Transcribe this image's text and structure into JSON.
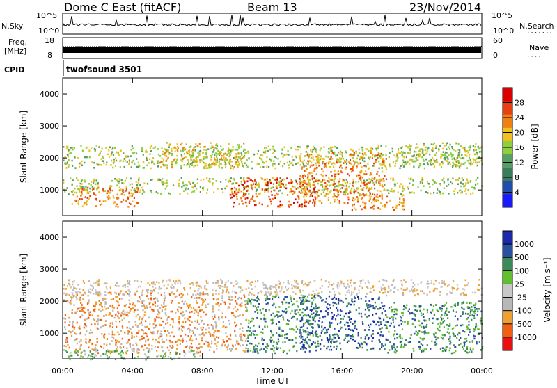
{
  "header": {
    "radar": "Dome C East (fitACF)",
    "beam": "Beam 13",
    "date": "23/Nov/2014"
  },
  "strip": {
    "nsky_label": "N.Sky",
    "nsky_ticks": [
      "10^5",
      "10^0"
    ],
    "nsearch_label": "N.Search",
    "nsearch_ticks": [
      "10^5",
      "10^0"
    ],
    "freq_label_1": "Freq.",
    "freq_label_2": "[MHz]",
    "freq_ticks": [
      "18",
      "8"
    ],
    "nave_label": "Nave",
    "nave_ticks": [
      "60",
      "0"
    ],
    "cpid_label": "CPID",
    "cpid_text": "twofsound 3501"
  },
  "colors": {
    "power": [
      "#1a1aff",
      "#1f4faa",
      "#3a7d5e",
      "#55a060",
      "#8fcf3f",
      "#f0c020",
      "#f08010",
      "#e84010",
      "#dc0000"
    ],
    "velocity": [
      "#e81010",
      "#f06010",
      "#f0a030",
      "#b8b8b8",
      "#c8c8c8",
      "#60c030",
      "#3a8a5a",
      "#2a50a0",
      "#1a2aaa"
    ]
  },
  "chart_data": [
    {
      "type": "heatmap",
      "name": "power",
      "xlabel": "",
      "ylabel": "Slant Range [km]",
      "ylim": [
        200,
        4500
      ],
      "xlim": [
        0,
        24
      ],
      "yticks": [
        "1000",
        "2000",
        "3000",
        "4000"
      ],
      "colorbar_label": "Power [dB]",
      "colorbar_ticks": [
        "4",
        "8",
        "12",
        "16",
        "20",
        "24",
        "28"
      ],
      "bands": [
        {
          "x0": 0.0,
          "x1": 24.0,
          "y0": 900,
          "y1": 1400,
          "level": 4
        },
        {
          "x0": 0.0,
          "x1": 24.0,
          "y0": 1700,
          "y1": 2400,
          "level": 4
        },
        {
          "x0": 0.5,
          "x1": 4.5,
          "y0": 500,
          "y1": 1100,
          "level": 6
        },
        {
          "x0": 5.5,
          "x1": 10.5,
          "y0": 1700,
          "y1": 2500,
          "level": 5
        },
        {
          "x0": 9.5,
          "x1": 14.5,
          "y0": 500,
          "y1": 1400,
          "level": 7
        },
        {
          "x0": 13.5,
          "x1": 18.5,
          "y0": 600,
          "y1": 2200,
          "level": 6
        },
        {
          "x0": 16.5,
          "x1": 19.5,
          "y0": 400,
          "y1": 900,
          "level": 6
        },
        {
          "x0": 19.5,
          "x1": 24.0,
          "y0": 1800,
          "y1": 2500,
          "level": 4
        }
      ]
    },
    {
      "type": "heatmap",
      "name": "velocity",
      "xlabel": "Time UT",
      "ylabel": "Slant Range [km]",
      "ylim": [
        200,
        4500
      ],
      "xlim": [
        0,
        24
      ],
      "xticks": [
        "00:00",
        "04:00",
        "08:00",
        "12:00",
        "16:00",
        "20:00",
        "00:00"
      ],
      "yticks": [
        "1000",
        "2000",
        "3000",
        "4000"
      ],
      "colorbar_label": "Velocity [m s⁻¹]",
      "colorbar_ticks": [
        "-1000",
        "-500",
        "-100",
        "-25",
        "25",
        "100",
        "500",
        "1000"
      ],
      "bands": [
        {
          "x0": 0.0,
          "x1": 10.5,
          "y0": 400,
          "y1": 2300,
          "level": 2
        },
        {
          "x0": 0.0,
          "x1": 24.0,
          "y0": 2200,
          "y1": 2700,
          "level": 3
        },
        {
          "x0": 10.5,
          "x1": 14.5,
          "y0": 400,
          "y1": 2200,
          "level": 6
        },
        {
          "x0": 13.5,
          "x1": 18.5,
          "y0": 500,
          "y1": 2200,
          "level": 7
        },
        {
          "x0": 18.5,
          "x1": 24.0,
          "y0": 400,
          "y1": 2000,
          "level": 6
        },
        {
          "x0": 0.0,
          "x1": 8.0,
          "y0": 200,
          "y1": 500,
          "level": 5
        }
      ]
    }
  ]
}
